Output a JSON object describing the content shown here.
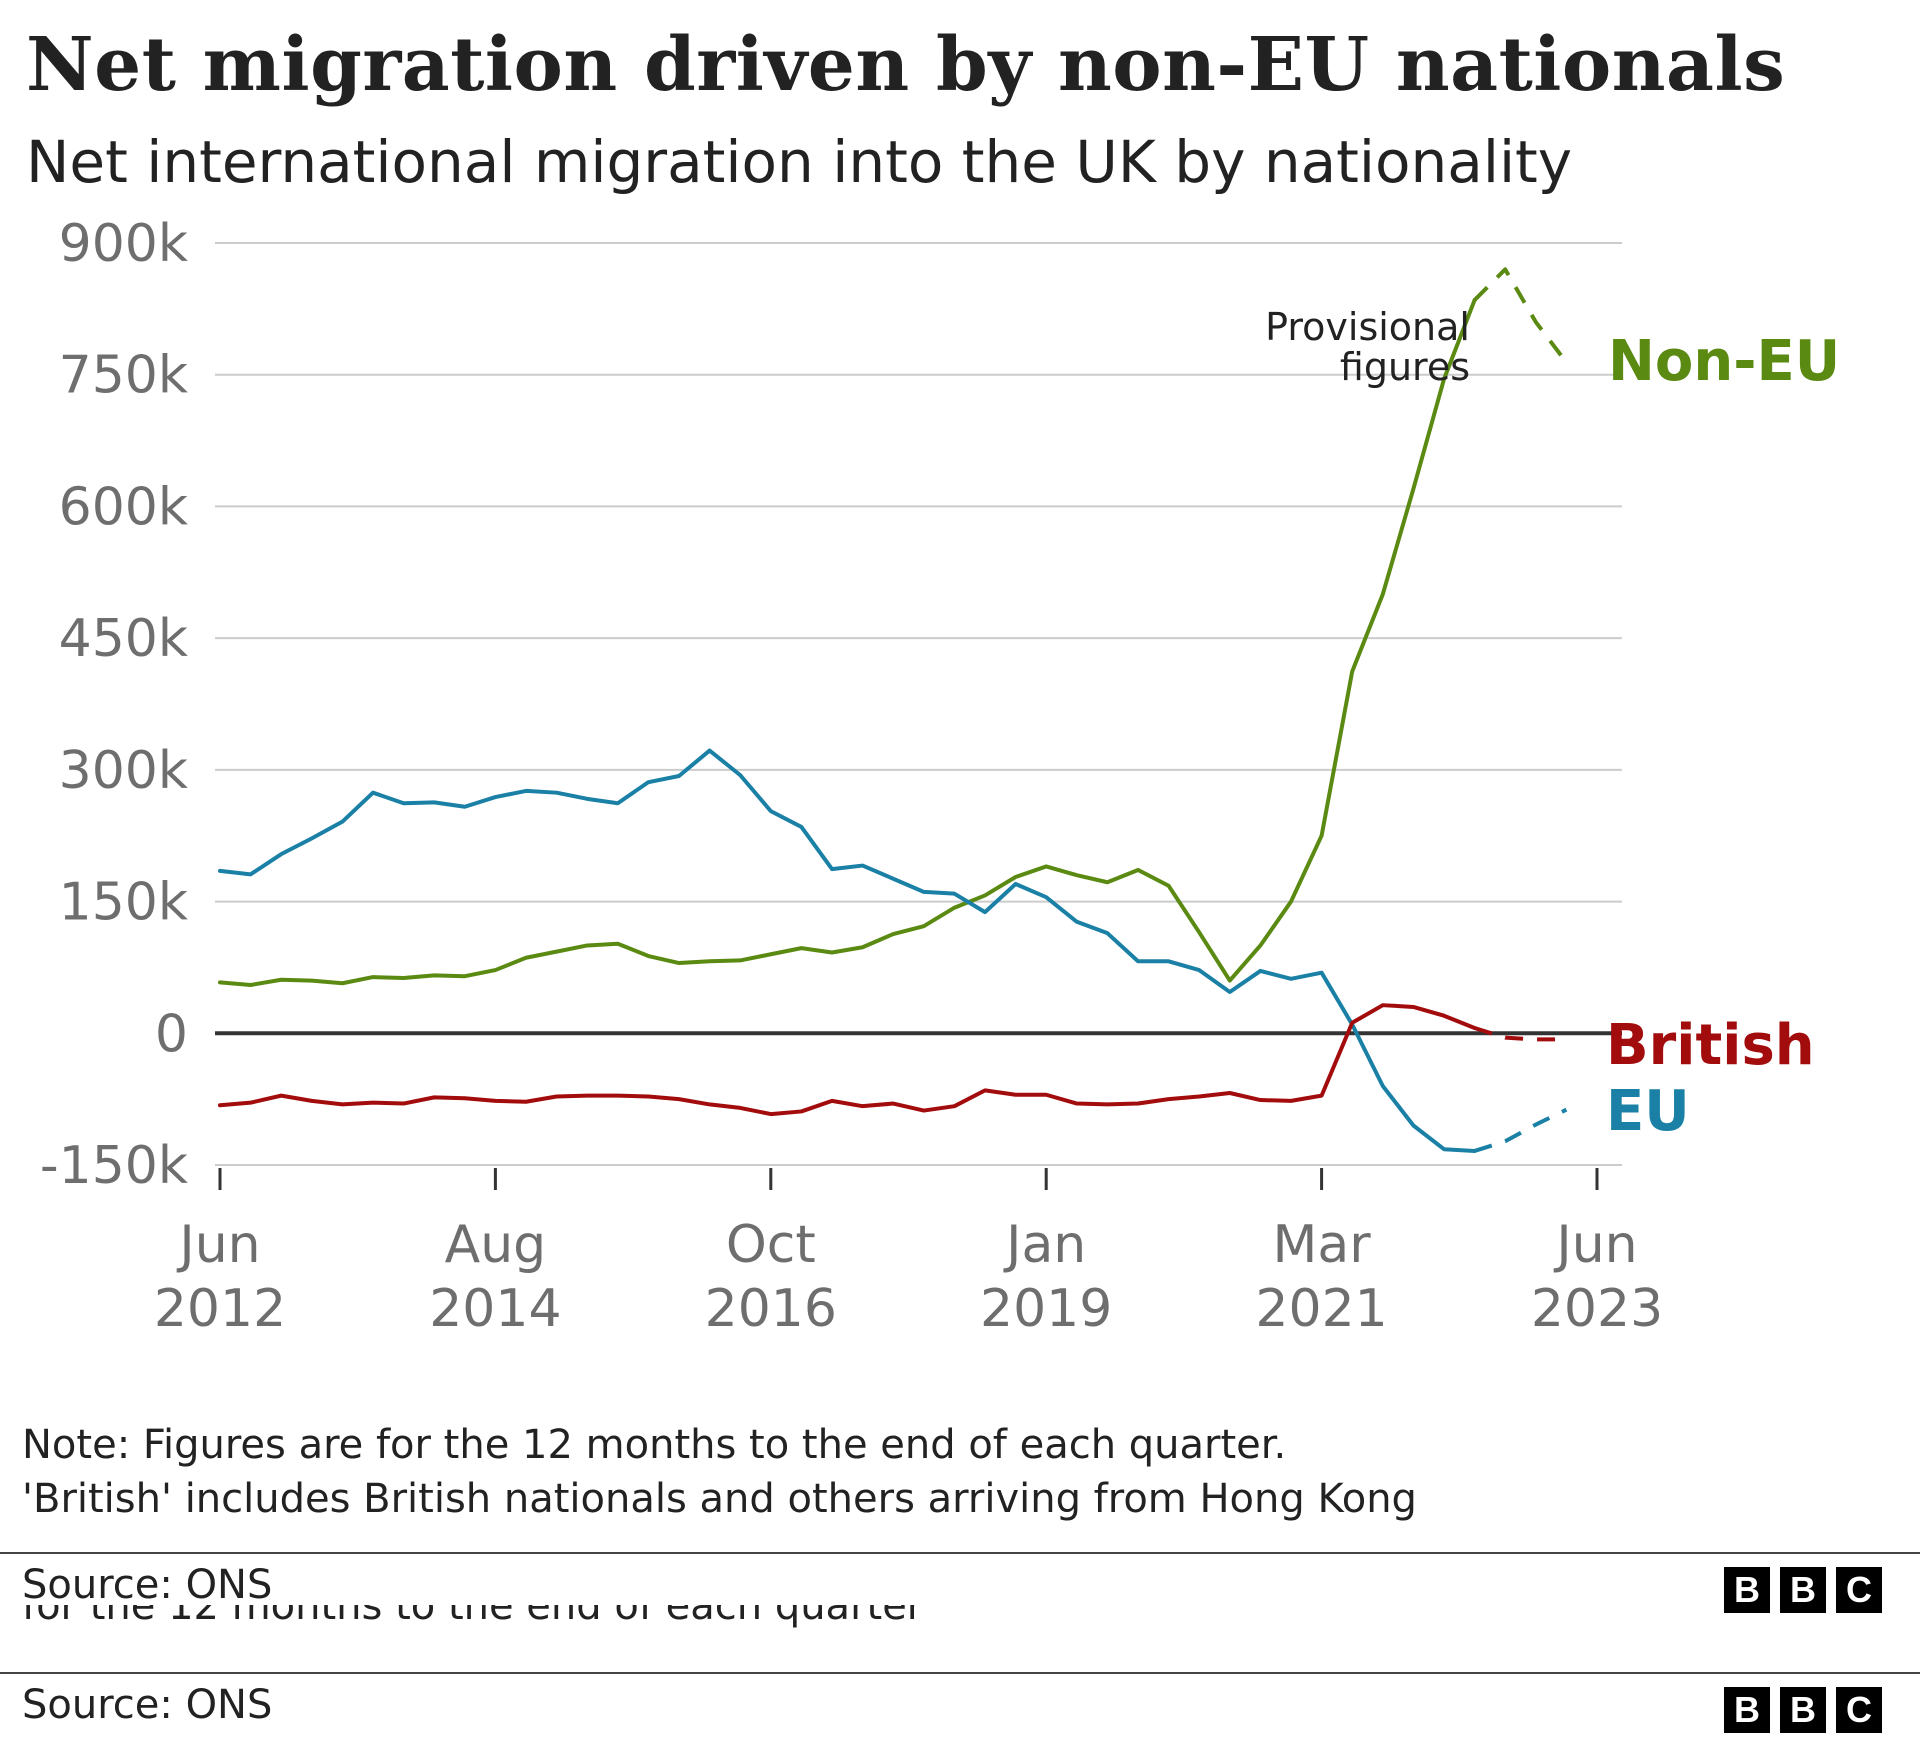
{
  "colors": {
    "non_eu": "#5a8a12",
    "eu": "#1a80a5",
    "british": "#a30c0c",
    "grid": "#cccccc",
    "zero": "#333333",
    "axis_text": "#6e6e6e"
  },
  "chart_data": {
    "type": "line",
    "title": "Net migration driven by non-EU nationals",
    "subtitle": "Net international migration into the UK by nationality",
    "ylim": [
      -150000,
      900000
    ],
    "yticks": [
      {
        "value": 900000,
        "label": "900k"
      },
      {
        "value": 750000,
        "label": "750k"
      },
      {
        "value": 600000,
        "label": "600k"
      },
      {
        "value": 450000,
        "label": "450k"
      },
      {
        "value": 300000,
        "label": "300k"
      },
      {
        "value": 150000,
        "label": "150k"
      },
      {
        "value": 0,
        "label": "0"
      },
      {
        "value": -150000,
        "label": "-150k"
      }
    ],
    "xlim": [
      0,
      44
    ],
    "xticks": [
      {
        "q": 0,
        "line1": "Jun",
        "line2": "2012"
      },
      {
        "q": 9,
        "line1": "Aug",
        "line2": "2014"
      },
      {
        "q": 18,
        "line1": "Oct",
        "line2": "2016"
      },
      {
        "q": 27,
        "line1": "Jan",
        "line2": "2019"
      },
      {
        "q": 36,
        "line1": "Mar",
        "line2": "2021"
      },
      {
        "q": 45,
        "line1": "Jun",
        "line2": "2023"
      }
    ],
    "provisional_from_q": 41,
    "annotation": {
      "line1": "Provisional",
      "line2": "figures"
    },
    "series": [
      {
        "name": "Non-EU",
        "key": "non_eu",
        "values": [
          58000,
          55000,
          61000,
          60000,
          57000,
          64000,
          63000,
          66000,
          65000,
          72000,
          86000,
          93000,
          100000,
          102000,
          88000,
          80000,
          82000,
          83000,
          90000,
          97000,
          92000,
          98000,
          113000,
          122000,
          143000,
          157000,
          178000,
          190000,
          180000,
          172000,
          186000,
          168000,
          115000,
          60000,
          100000,
          150000,
          225000,
          412000,
          500000,
          620000,
          745000,
          835000,
          870000,
          810000,
          764000
        ]
      },
      {
        "name": "EU",
        "key": "eu",
        "values": [
          185000,
          181000,
          204000,
          222000,
          241000,
          274000,
          262000,
          263000,
          258000,
          269000,
          276000,
          274000,
          267000,
          262000,
          286000,
          293000,
          322000,
          294000,
          253000,
          235000,
          187000,
          191000,
          176000,
          161000,
          159000,
          138000,
          170000,
          155000,
          127000,
          114000,
          82000,
          82000,
          72000,
          47000,
          71000,
          62000,
          69000,
          10000,
          -60000,
          -105000,
          -132000,
          -134000,
          -123000,
          -104000,
          -87000
        ]
      },
      {
        "name": "British",
        "key": "british",
        "values": [
          -82000,
          -79000,
          -71000,
          -77000,
          -81000,
          -79000,
          -80000,
          -73000,
          -74000,
          -77000,
          -78000,
          -72000,
          -71000,
          -71000,
          -72000,
          -75000,
          -81000,
          -85000,
          -92000,
          -89000,
          -77000,
          -83000,
          -80000,
          -88000,
          -83000,
          -65000,
          -70000,
          -70000,
          -80000,
          -81000,
          -80000,
          -75000,
          -72000,
          -68000,
          -76000,
          -77000,
          -71000,
          12000,
          32000,
          30000,
          20000,
          6000,
          -5000,
          -7000,
          -7000
        ]
      }
    ]
  },
  "legend": {
    "non_eu": "Non-EU",
    "british": "British",
    "eu": "EU"
  },
  "footer": {
    "note_line1": "Note: Figures are for the 12 months to the end of each quarter.",
    "note_line2": "'British' includes British nationals and others arriving from Hong Kong",
    "source": "Source: ONS",
    "repeated_fragment": "for the 12 months to the end of each quarter",
    "source_repeat": "Source: ONS",
    "logo_letters": [
      "B",
      "B",
      "C"
    ]
  }
}
